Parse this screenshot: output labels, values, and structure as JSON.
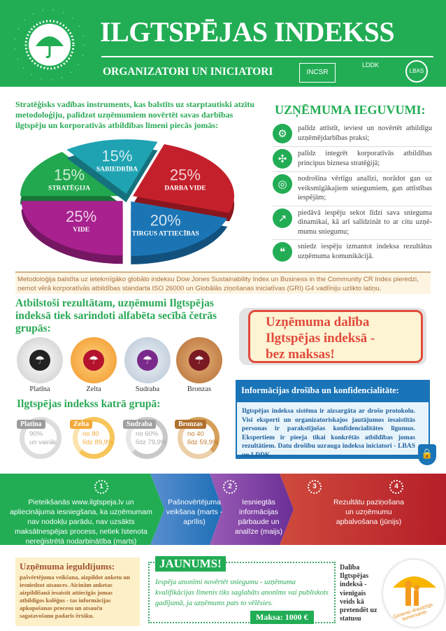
{
  "header": {
    "title": "ILGTSPĒJAS INDEKSS",
    "subtitle": "ORGANIZATORI UN INICIATORI",
    "logo_text": "ILGTSPĒJAS INDEKSS",
    "partners": [
      "INCSR",
      "LDDK",
      "LBAS"
    ]
  },
  "intro": "Stratēģisks vadības instruments, kas balstīts uz starptau­tiski atzītu metodoloģiju, palīdzot uzņēmumiem novērtēt savas darbības ilgtspēju un korporatīvās atbildības līmeni piecās jomās:",
  "chart_data": {
    "type": "pie",
    "categories": [
      "STRATĒĢIJA",
      "SABIEDRĪBA",
      "DARBA VIDE",
      "TIRGUS ATTIECĪBAS",
      "VIDE"
    ],
    "values": [
      15,
      15,
      25,
      20,
      25
    ],
    "labels": [
      "15%",
      "15%",
      "25%",
      "20%",
      "25%"
    ],
    "colors": [
      "#22a84f",
      "#1fa3b3",
      "#c4202b",
      "#1b75b5",
      "#a8218e"
    ]
  },
  "benefits": {
    "title": "UZŅĒMUMA IEGUVUMI:",
    "items": [
      {
        "icon": "gears-icon",
        "text": "palīdz attīstīt, ieviest un novērtēt atbildī­gu uzņēmējdarbības praksi;"
      },
      {
        "icon": "pinwheel-icon",
        "text": "palīdz integrēt korporatīvās atbildības principus biznesa stratēģijā;"
      },
      {
        "icon": "target-icon",
        "text": "nodrošina vērtīgu analīzi, norādot gan uz veiksmīgākajiem sniegumiem, gan attīs­tības iespējām;"
      },
      {
        "icon": "growth-arrow-icon",
        "text": "piedāvā iespēju sekot līdzi sava snieguma dinamikai, kā arī salīdzināt to ar citu uzņē­mumu sniegumu;"
      },
      {
        "icon": "chat-bubbles-icon",
        "text": "sniedz iespēju izmantot indeksa rezultā­tus uzņēmuma komunikācijā."
      }
    ]
  },
  "methodology": "Metodoloģija balstīta uz ietekmīgāko globālo indeksu Dow Jones Sustainability Index un Business in the Community CR Index pieredzi, ņemot vērā korporatīvās atbildības standarta ISO 26000 un Globālās ziņošanas iniciatīvas (GRI) G4 vadlīniju uzlikto latiņu.",
  "groups": {
    "title": "Atbilstoši rezultātam, uzņēmumi Ilgtspējas indeksā tiek sarindoti alfabēta secībā četrās grupās:",
    "medals": [
      "Platīna",
      "Zelta",
      "Sudraba",
      "Bronzas"
    ]
  },
  "index": {
    "title": "Ilgtspējas indekss katrā grupā:",
    "groups": [
      {
        "name": "Platīna",
        "line1": "90%",
        "line2": "un vairāk",
        "color": "#9b9b9b"
      },
      {
        "name": "Zelta",
        "line1": "no 80",
        "line2": "līdz 89,9%",
        "color": "#f2a93b"
      },
      {
        "name": "Sudraba",
        "line1": "no 60%",
        "line2": "līdz 79,9%",
        "color": "#a0a0a0"
      },
      {
        "name": "Bronzas",
        "line1": "no 40",
        "line2": "līdz 59,9%",
        "color": "#b0702e"
      }
    ]
  },
  "free": {
    "line1": "Uzņēmuma dalība",
    "line2": "Ilgtspējas indeksā -",
    "line3": "bez maksas!"
  },
  "security": {
    "title": "Informācijas drošība un konfidencialitāte:",
    "text": "Ilgtspējas indeksa sistēma ir aizsargāta ar drošo protokolu. Visi eksperti un organizatoriskajos jautājumos iesaistītās personas ir parakstījušas konfidencialitātes līgumus. Ekspertiem ir pieeja tikai konkrētās atbildības jomas rezultātiem. Datu drošību uzrauga indeksa iniciatori - LBAS un LDDK."
  },
  "steps": [
    {
      "num": "1",
      "text": "Pieteikšanās www.ilgtspeja.lv un apliecinājuma iesniegšana, ka uzņēmumam nav nodokļu parādu, nav uzsākts maksātnespējas process, netiek īstenota nereģistrētā nodarbinātība (marts)"
    },
    {
      "num": "2",
      "text": "Pašnovērtējuma veikšana (marts - aprīlis)"
    },
    {
      "num": "3",
      "text": "Iesniegtās informācijas pārbaude un analīze (maijs)"
    },
    {
      "num": "4",
      "text": "Rezultātu paziņošana un uzņēmumu apbalvošana (jūnijs)"
    }
  ],
  "investment": {
    "title": "Uzņēmuma ieguldījums:",
    "text": "pašvērtējuma veikšana, aizpildot anketu un iesniedzot atsauces. Aicinām anketas aizpildīšanā iesaistīt attiecīgās jomas atbildīgos kolēģus - tas informācijas apkopošanas procesu un atsauču sagatavošanu padarīs ērtāku."
  },
  "news": {
    "tag": "JAUNUMS!",
    "text": "Iespēja anonīmi novērtēt sniegumu - uzņēmuma kvalifikācijas līmenis tiks saglabāts anonīms vai publiskots gadījumā, ja uzņēmums pats to vēlēsies.",
    "price": "Maksa: 1000 €"
  },
  "status": {
    "text": "Dalība Ilgtspējas indeksā - vienīgais veids kā pretendēt uz statusu",
    "badge": "Ģimenei draudzīgs komersants"
  }
}
